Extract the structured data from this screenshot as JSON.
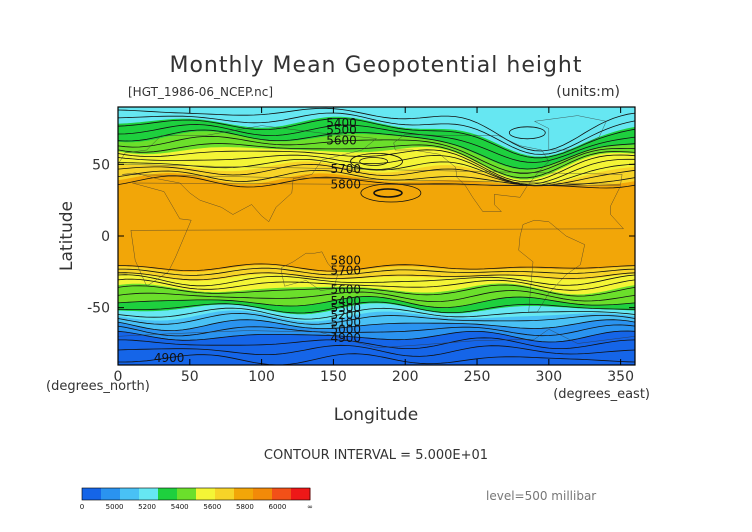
{
  "chart_data": {
    "type": "contour",
    "title": "Monthly Mean Geopotential height",
    "source_label": "[HGT_1986-06_NCEP.nc]",
    "units_label": "(units:m)",
    "xlabel": "Longitude",
    "xunit": "(degrees_east)",
    "ylabel": "Latitude",
    "yunit": "(degrees_north)",
    "xlim": [
      0,
      360
    ],
    "ylim": [
      -90,
      90
    ],
    "xticks": [
      0,
      50,
      100,
      150,
      200,
      250,
      300,
      350
    ],
    "yticks": [
      50,
      0,
      -50
    ],
    "contour_interval_text": "CONTOUR INTERVAL = 5.000E+01",
    "level_text": "level=500 millibar",
    "contour_labels": [
      {
        "text": "5400",
        "lon": 145,
        "lat": 76
      },
      {
        "text": "5500",
        "lon": 145,
        "lat": 71
      },
      {
        "text": "5600",
        "lon": 145,
        "lat": 64
      },
      {
        "text": "5700",
        "lon": 148,
        "lat": 44
      },
      {
        "text": "5800",
        "lon": 148,
        "lat": 33
      },
      {
        "text": "5800",
        "lon": 148,
        "lat": -20
      },
      {
        "text": "5700",
        "lon": 148,
        "lat": -27
      },
      {
        "text": "5600",
        "lon": 148,
        "lat": -40
      },
      {
        "text": "5400",
        "lon": 148,
        "lat": -48
      },
      {
        "text": "5300",
        "lon": 148,
        "lat": -53
      },
      {
        "text": "5200",
        "lon": 148,
        "lat": -58
      },
      {
        "text": "5100",
        "lon": 148,
        "lat": -63
      },
      {
        "text": "5000",
        "lon": 148,
        "lat": -68
      },
      {
        "text": "4900",
        "lon": 148,
        "lat": -74
      },
      {
        "text": "4900",
        "lon": 25,
        "lat": -88
      }
    ],
    "colorbar": {
      "tick_labels": [
        "0",
        "5000",
        "5200",
        "5400",
        "5600",
        "5800",
        "6000",
        "∞"
      ],
      "colors": [
        "#1565e8",
        "#2a93f0",
        "#49c1f5",
        "#66e7f2",
        "#1ed03e",
        "#6bdf2b",
        "#f4f536",
        "#f7d428",
        "#f2a608",
        "#f28a08",
        "#f25018",
        "#ee1818"
      ]
    },
    "bands": [
      {
        "lat_top": 90,
        "lat_bottom": 79,
        "color": "#66e7f2"
      },
      {
        "lat_top": 79,
        "lat_bottom": 69,
        "color": "#1ed03e"
      },
      {
        "lat_top": 69,
        "lat_bottom": 60,
        "color": "#6bdf2b"
      },
      {
        "lat_top": 60,
        "lat_bottom": 48,
        "color": "#f4f536"
      },
      {
        "lat_top": 48,
        "lat_bottom": 40,
        "color": "#f7d428"
      },
      {
        "lat_top": 40,
        "lat_bottom": -23,
        "color": "#f2a608"
      },
      {
        "lat_top": -23,
        "lat_bottom": -29,
        "color": "#f7d428"
      },
      {
        "lat_top": -29,
        "lat_bottom": -37,
        "color": "#f4f536"
      },
      {
        "lat_top": -37,
        "lat_bottom": -46,
        "color": "#6bdf2b"
      },
      {
        "lat_top": -46,
        "lat_bottom": -51,
        "color": "#1ed03e"
      },
      {
        "lat_top": -51,
        "lat_bottom": -56,
        "color": "#66e7f2"
      },
      {
        "lat_top": -56,
        "lat_bottom": -62,
        "color": "#49c1f5"
      },
      {
        "lat_top": -62,
        "lat_bottom": -70,
        "color": "#2a93f0"
      },
      {
        "lat_top": -70,
        "lat_bottom": -90,
        "color": "#1565e8"
      }
    ],
    "polar_trough": {
      "lon_center": 290,
      "lon_halfwidth": 45,
      "lat_depth": 24,
      "color": "#66e7f2"
    },
    "contour_lats": [
      86,
      82,
      78,
      74,
      70,
      66,
      62,
      58,
      54,
      50,
      46,
      42,
      38,
      -22,
      -25,
      -28,
      -31,
      -34,
      -38,
      -42,
      -46,
      -50,
      -54,
      -58,
      -62,
      -66,
      -70,
      -75,
      -80,
      -86
    ]
  }
}
